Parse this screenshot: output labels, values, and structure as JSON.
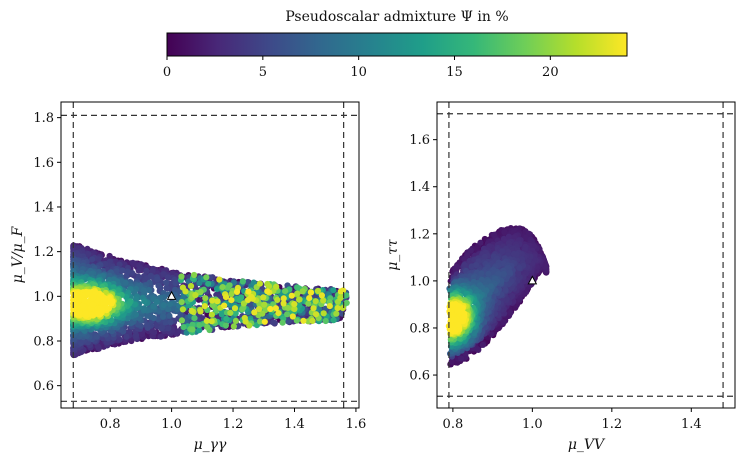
{
  "chart_data": [
    {
      "type": "scatter",
      "title": "Pseudoscalar admixture Ψ in %",
      "colorbar": {
        "label": "Pseudoscalar admixture Ψ in %",
        "range": [
          0,
          24
        ],
        "ticks": [
          0,
          5,
          10,
          15,
          20
        ],
        "tick_labels": [
          "0",
          "5",
          "10",
          "15",
          "20"
        ],
        "colormap": "viridis",
        "colors": [
          "#440154",
          "#482878",
          "#3e4989",
          "#31688e",
          "#26828e",
          "#1f9e89",
          "#35b779",
          "#6ece58",
          "#b5de2b",
          "#fde725"
        ]
      }
    },
    {
      "type": "scatter",
      "panel": "left",
      "xlabel": "μ_γγ",
      "ylabel": "μ_V/μ_F",
      "xlim": [
        0.64,
        1.61
      ],
      "ylim": [
        0.5,
        1.87
      ],
      "xticks": [
        0.8,
        1.0,
        1.2,
        1.4,
        1.6
      ],
      "xtick_labels": [
        "0.8",
        "1.0",
        "1.2",
        "1.4",
        "1.6"
      ],
      "yticks": [
        0.6,
        0.8,
        1.0,
        1.2,
        1.4,
        1.6,
        1.8
      ],
      "ytick_labels": [
        "0.6",
        "0.8",
        "1.0",
        "1.2",
        "1.4",
        "1.6",
        "1.8"
      ],
      "ref_lines": {
        "vertical": [
          0.68,
          1.56
        ],
        "horizontal": [
          0.53,
          1.81
        ]
      },
      "sm_point": {
        "x": 1.0,
        "y": 1.0,
        "marker": "triangle"
      },
      "point_cloud": {
        "x_range": [
          0.68,
          1.57
        ],
        "y_range": [
          0.72,
          1.24
        ],
        "dense_core": {
          "x": 0.73,
          "y": 0.97,
          "psi_max": 24
        },
        "tail_end": {
          "x": 1.56,
          "y": 0.97
        }
      }
    },
    {
      "type": "scatter",
      "panel": "right",
      "xlabel": "μ_VV",
      "ylabel": "μ_ττ",
      "xlim": [
        0.76,
        1.51
      ],
      "ylim": [
        0.46,
        1.76
      ],
      "xticks": [
        0.8,
        1.0,
        1.2,
        1.4
      ],
      "xtick_labels": [
        "0.8",
        "1.0",
        "1.2",
        "1.4"
      ],
      "yticks": [
        0.6,
        0.8,
        1.0,
        1.2,
        1.4,
        1.6
      ],
      "ytick_labels": [
        "0.6",
        "0.8",
        "1.0",
        "1.2",
        "1.4",
        "1.6"
      ],
      "ref_lines": {
        "vertical": [
          0.79,
          1.48
        ],
        "horizontal": [
          0.51,
          1.71
        ]
      },
      "sm_point": {
        "x": 1.0,
        "y": 1.0,
        "marker": "triangle"
      },
      "point_cloud": {
        "x_range": [
          0.79,
          1.03
        ],
        "y_range": [
          0.64,
          1.19
        ],
        "dense_core": {
          "x": 0.8,
          "y": 0.84,
          "psi_max": 24
        }
      }
    }
  ]
}
